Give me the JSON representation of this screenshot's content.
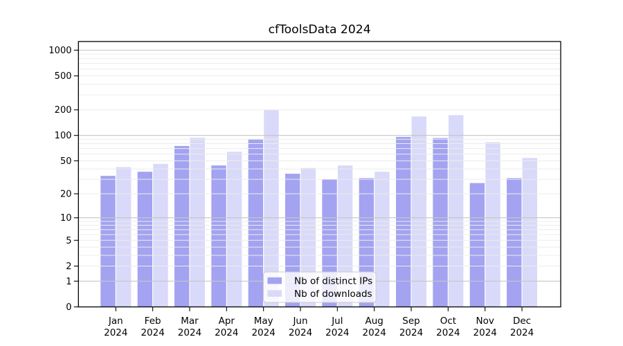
{
  "chart_data": {
    "type": "bar",
    "title": "cfToolsData 2024",
    "categories": [
      "Jan",
      "Feb",
      "Mar",
      "Apr",
      "May",
      "Jun",
      "Jul",
      "Aug",
      "Sep",
      "Oct",
      "Nov",
      "Dec"
    ],
    "year_label": "2024",
    "series": [
      {
        "name": "Nb of distinct IPs",
        "color": "#a3a3f1",
        "values": [
          33,
          37,
          75,
          44,
          90,
          35,
          30,
          31,
          96,
          93,
          27,
          31
        ]
      },
      {
        "name": "Nb of downloads",
        "color": "#d9d9f9",
        "values": [
          42,
          46,
          94,
          64,
          200,
          41,
          44,
          37,
          167,
          173,
          83,
          54
        ]
      }
    ],
    "y_ticks": [
      0,
      1,
      2,
      5,
      10,
      20,
      50,
      100,
      200,
      500,
      1000
    ],
    "y_scale": "symlog-log1p",
    "ylim": [
      0,
      1300
    ],
    "grid": "on",
    "legend_position": "lower-center",
    "colors": {
      "background": "#ffffff",
      "axis": "#000000",
      "major_grid": "#c6c6c6",
      "minor_grid": "#ececec",
      "legend_bg": "rgba(255,255,255,0.8)",
      "legend_border": "#cccccc"
    }
  }
}
